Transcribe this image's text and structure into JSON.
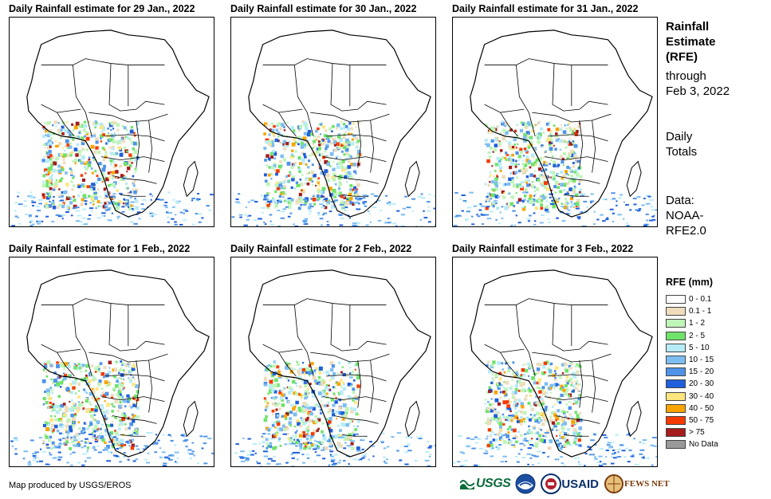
{
  "panels": [
    {
      "title": "Daily Rainfall estimate for 29 Jan., 2022"
    },
    {
      "title": "Daily Rainfall estimate for 30 Jan., 2022"
    },
    {
      "title": "Daily Rainfall estimate for 31 Jan., 2022"
    },
    {
      "title": "Daily Rainfall estimate for 1 Feb., 2022"
    },
    {
      "title": "Daily Rainfall estimate for 2 Feb., 2022"
    },
    {
      "title": "Daily Rainfall estimate for 3 Feb., 2022"
    }
  ],
  "side": {
    "title_lines": [
      "Rainfall",
      "Estimate",
      "(RFE)"
    ],
    "through_lines": [
      "through",
      "Feb 3, 2022"
    ],
    "totals_lines": [
      "Daily",
      "Totals"
    ],
    "data_lines": [
      "Data:",
      "NOAA-",
      "RFE2.0"
    ]
  },
  "legend": {
    "title": "RFE (mm)",
    "items": [
      {
        "label": "0 - 0.1",
        "color": "#ffffff"
      },
      {
        "label": "0.1 - 1",
        "color": "#efdcbc"
      },
      {
        "label": "1 - 2",
        "color": "#bff5b7"
      },
      {
        "label": "2 - 5",
        "color": "#6fe36a"
      },
      {
        "label": "5 - 10",
        "color": "#b7ecf7"
      },
      {
        "label": "10 - 15",
        "color": "#7dbdf2"
      },
      {
        "label": "15 - 20",
        "color": "#4f93e8"
      },
      {
        "label": "20 - 30",
        "color": "#1f5fdc"
      },
      {
        "label": "30 - 40",
        "color": "#fde67e"
      },
      {
        "label": "40 - 50",
        "color": "#f9a400"
      },
      {
        "label": "50 - 75",
        "color": "#f53a00"
      },
      {
        "label": "> 75",
        "color": "#a51d1d"
      },
      {
        "label": "No Data",
        "color": "#9a9a9a"
      }
    ]
  },
  "credit": "Map produced by USGS/EROS",
  "logos": {
    "usgs": "USGS",
    "usaid": "USAID",
    "fews": "FEWS NET"
  }
}
